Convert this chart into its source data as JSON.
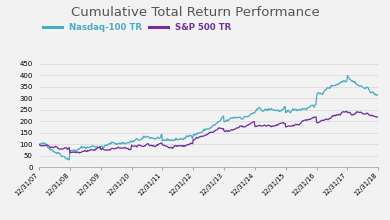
{
  "title": "Cumulative Total Return Performance",
  "title_fontsize": 9.5,
  "legend_labels": [
    "Nasdaq-100 TR",
    "S&P 500 TR"
  ],
  "nasdaq_color": "#4bacc6",
  "sp500_color": "#7030a0",
  "background_color": "#f2f2f2",
  "ylim": [
    0,
    470
  ],
  "yticks": [
    0,
    50,
    100,
    150,
    200,
    250,
    300,
    350,
    400,
    450
  ],
  "xtick_labels": [
    "12/31/07",
    "12/31/08",
    "12/31/09",
    "12/31/10",
    "12/31/11",
    "12/31/12",
    "12/31/13",
    "12/31/14",
    "12/31/15",
    "12/31/16",
    "12/31/17",
    "12/31/18"
  ],
  "nasdaq_annual": [
    100,
    67,
    90,
    112,
    115,
    138,
    198,
    240,
    238,
    308,
    400,
    330
  ],
  "sp500_annual": [
    100,
    63,
    78,
    96,
    98,
    120,
    158,
    178,
    175,
    196,
    238,
    210
  ],
  "noise_seed": 42,
  "n_points_per_year": 52
}
